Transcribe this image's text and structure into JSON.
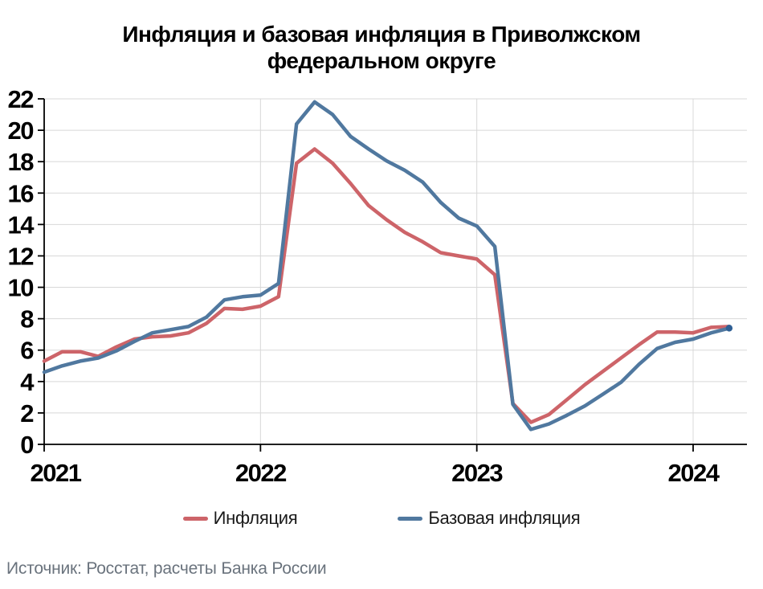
{
  "title": "Инфляция и базовая инфляция в Приволжском федеральном округе",
  "source": "Источник: Росстат, расчеты Банка России",
  "legend": {
    "items": [
      {
        "label": "Инфляция",
        "color": "#cd6469"
      },
      {
        "label": "Базовая инфляция",
        "color": "#50789f"
      }
    ]
  },
  "chart_data": {
    "type": "line",
    "title": "Инфляция и базовая инфляция в Приволжском федеральном округе",
    "xlabel": "",
    "ylabel": "",
    "ylim": [
      0,
      22
    ],
    "ytick_step": 2,
    "grid": true,
    "legend_position": "bottom",
    "x_tick_labels": [
      "2021",
      "2022",
      "2023",
      "2024"
    ],
    "x_tick_month_index": [
      0,
      12,
      24,
      36
    ],
    "categories": [
      "2021-01",
      "2021-02",
      "2021-03",
      "2021-04",
      "2021-05",
      "2021-06",
      "2021-07",
      "2021-08",
      "2021-09",
      "2021-10",
      "2021-11",
      "2021-12",
      "2022-01",
      "2022-02",
      "2022-03",
      "2022-04",
      "2022-05",
      "2022-06",
      "2022-07",
      "2022-08",
      "2022-09",
      "2022-10",
      "2022-11",
      "2022-12",
      "2023-01",
      "2023-02",
      "2023-03",
      "2023-04",
      "2023-05",
      "2023-06",
      "2023-07",
      "2023-08",
      "2023-09",
      "2023-10",
      "2023-11",
      "2023-12",
      "2024-01",
      "2024-02",
      "2024-03"
    ],
    "series": [
      {
        "name": "Инфляция",
        "color": "#cd6469",
        "values": [
          5.3,
          5.9,
          5.9,
          5.6,
          6.2,
          6.7,
          6.85,
          6.9,
          7.1,
          7.7,
          8.65,
          8.6,
          8.8,
          9.4,
          17.9,
          18.8,
          17.9,
          16.6,
          15.2,
          14.3,
          13.5,
          12.9,
          12.2,
          12.0,
          11.8,
          10.8,
          2.6,
          1.4,
          1.9,
          2.85,
          3.8,
          4.65,
          5.5,
          6.35,
          7.15,
          7.15,
          7.1,
          7.45,
          7.5
        ]
      },
      {
        "name": "Базовая инфляция",
        "color": "#50789f",
        "end_marker": true,
        "end_marker_color": "#2e5f94",
        "values": [
          4.6,
          5.0,
          5.3,
          5.5,
          5.95,
          6.55,
          7.1,
          7.3,
          7.5,
          8.1,
          9.2,
          9.4,
          9.5,
          10.25,
          20.4,
          21.8,
          21.0,
          19.6,
          18.8,
          18.05,
          17.45,
          16.7,
          15.4,
          14.4,
          13.9,
          12.6,
          2.55,
          0.95,
          1.3,
          1.85,
          2.45,
          3.2,
          3.95,
          5.1,
          6.1,
          6.5,
          6.7,
          7.1,
          7.4
        ]
      }
    ],
    "colors": {
      "grid": "#d8d8d8",
      "axis": "#000000"
    }
  }
}
